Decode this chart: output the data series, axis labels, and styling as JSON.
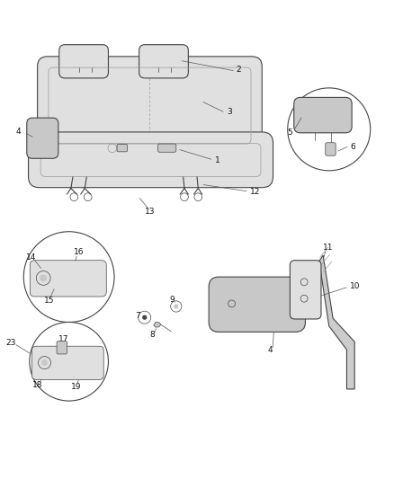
{
  "bg_color": "#ffffff",
  "line_color": "#444444",
  "gray1": "#bbbbbb",
  "gray2": "#999999",
  "gray3": "#cccccc",
  "fill_seat": "#e0e0e0",
  "fill_dark": "#c8c8c8",
  "fill_white": "#f5f5f5"
}
